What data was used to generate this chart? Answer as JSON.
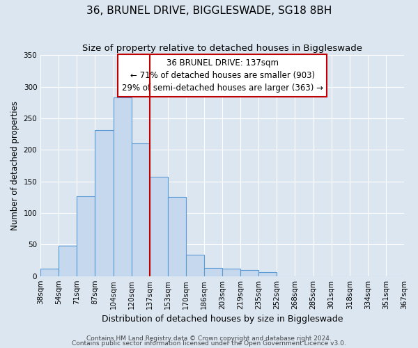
{
  "title": "36, BRUNEL DRIVE, BIGGLESWADE, SG18 8BH",
  "subtitle": "Size of property relative to detached houses in Biggleswade",
  "xlabel": "Distribution of detached houses by size in Biggleswade",
  "ylabel": "Number of detached properties",
  "bin_labels": [
    "38sqm",
    "54sqm",
    "71sqm",
    "87sqm",
    "104sqm",
    "120sqm",
    "137sqm",
    "153sqm",
    "170sqm",
    "186sqm",
    "203sqm",
    "219sqm",
    "235sqm",
    "252sqm",
    "268sqm",
    "285sqm",
    "301sqm",
    "318sqm",
    "334sqm",
    "351sqm",
    "367sqm"
  ],
  "bar_heights": [
    12,
    48,
    127,
    231,
    283,
    210,
    157,
    125,
    34,
    13,
    12,
    10,
    6,
    0,
    0,
    0,
    0,
    0,
    0,
    0
  ],
  "bar_color": "#c5d8ed",
  "bar_edge_color": "#5b9bd5",
  "vline_x": 6,
  "vline_color": "#c00000",
  "ylim": [
    0,
    350
  ],
  "yticks": [
    0,
    50,
    100,
    150,
    200,
    250,
    300,
    350
  ],
  "annotation_title": "36 BRUNEL DRIVE: 137sqm",
  "annotation_line1": "← 71% of detached houses are smaller (903)",
  "annotation_line2": "29% of semi-detached houses are larger (363) →",
  "annotation_box_color": "#ffffff",
  "annotation_box_edge_color": "#c00000",
  "footer_line1": "Contains HM Land Registry data © Crown copyright and database right 2024.",
  "footer_line2": "Contains public sector information licensed under the Open Government Licence v3.0.",
  "background_color": "#dce6f1",
  "plot_background_color": "#dce6f1",
  "title_fontsize": 11,
  "subtitle_fontsize": 9.5,
  "ylabel_fontsize": 8.5,
  "xlabel_fontsize": 9,
  "tick_fontsize": 7.5,
  "annotation_fontsize": 8.5,
  "footer_fontsize": 6.5
}
